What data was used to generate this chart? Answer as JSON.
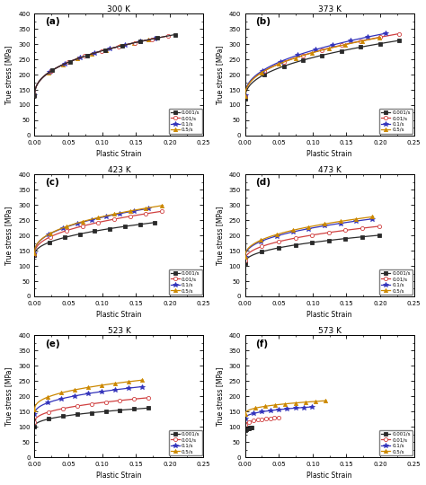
{
  "temperatures": [
    "300 K",
    "373 K",
    "423 K",
    "473 K",
    "523 K",
    "573 K"
  ],
  "labels": [
    "(a)",
    "(b)",
    "(c)",
    "(d)",
    "(e)",
    "(f)"
  ],
  "strain_rates": [
    "0.001/s",
    "0.01/s",
    "0.1/s",
    "0.5/s"
  ],
  "colors": [
    "#2a2a2a",
    "#d04040",
    "#3333bb",
    "#cc8800"
  ],
  "markers": [
    "s",
    "o",
    "*",
    "^"
  ],
  "markersize_vals": [
    3,
    3,
    4,
    3
  ],
  "ylim": [
    0,
    400
  ],
  "xlim": [
    0.0,
    0.25
  ],
  "yticks": [
    0,
    50,
    100,
    150,
    200,
    250,
    300,
    350,
    400
  ],
  "xticks": [
    0.0,
    0.05,
    0.1,
    0.15,
    0.2,
    0.25
  ],
  "ylabel": "True stress [MPa]",
  "xlabel": "Plastic Strain",
  "figsize": [
    4.74,
    5.4
  ],
  "dpi": 100,
  "curve_params": [
    {
      "temp": "300 K",
      "sigma0": [
        130,
        130,
        130,
        130
      ],
      "K": [
        390,
        390,
        390,
        390
      ],
      "n": [
        0.42,
        0.42,
        0.42,
        0.42
      ],
      "sr_factor": [
        1.0,
        1.0,
        1.0,
        1.0
      ],
      "max_strain": [
        0.21,
        0.2,
        0.18,
        0.17
      ]
    },
    {
      "temp": "373 K",
      "sigma0": [
        128,
        128,
        128,
        128
      ],
      "K": [
        380,
        390,
        395,
        388
      ],
      "n": [
        0.42,
        0.43,
        0.44,
        0.43
      ],
      "sr_factor": [
        0.94,
        1.0,
        1.03,
        1.0
      ],
      "max_strain": [
        0.23,
        0.23,
        0.21,
        0.2
      ]
    },
    {
      "temp": "423 K",
      "sigma0": [
        135,
        138,
        142,
        142
      ],
      "K": [
        230,
        290,
        310,
        315
      ],
      "n": [
        0.44,
        0.43,
        0.42,
        0.42
      ],
      "sr_factor": [
        1.0,
        1.0,
        1.0,
        1.0
      ],
      "max_strain": [
        0.18,
        0.19,
        0.17,
        0.19
      ]
    },
    {
      "temp": "473 K",
      "sigma0": [
        110,
        118,
        128,
        130
      ],
      "K": [
        185,
        225,
        255,
        265
      ],
      "n": [
        0.44,
        0.43,
        0.42,
        0.42
      ],
      "sr_factor": [
        1.0,
        1.0,
        1.0,
        1.0
      ],
      "max_strain": [
        0.2,
        0.2,
        0.19,
        0.19
      ]
    },
    {
      "temp": "523 K",
      "sigma0": [
        100,
        115,
        140,
        155
      ],
      "K": [
        130,
        170,
        195,
        205
      ],
      "n": [
        0.42,
        0.42,
        0.41,
        0.4
      ],
      "sr_factor": [
        1.0,
        1.0,
        1.0,
        1.0
      ],
      "max_strain": [
        0.17,
        0.17,
        0.16,
        0.16
      ]
    },
    {
      "temp": "573 K",
      "sigma0": [
        88,
        105,
        125,
        140
      ],
      "K": [
        55,
        80,
        95,
        100
      ],
      "n": [
        0.38,
        0.38,
        0.37,
        0.37
      ],
      "sr_factor": [
        1.0,
        1.0,
        1.0,
        1.0
      ],
      "max_strain": [
        0.01,
        0.05,
        0.1,
        0.12
      ]
    }
  ]
}
